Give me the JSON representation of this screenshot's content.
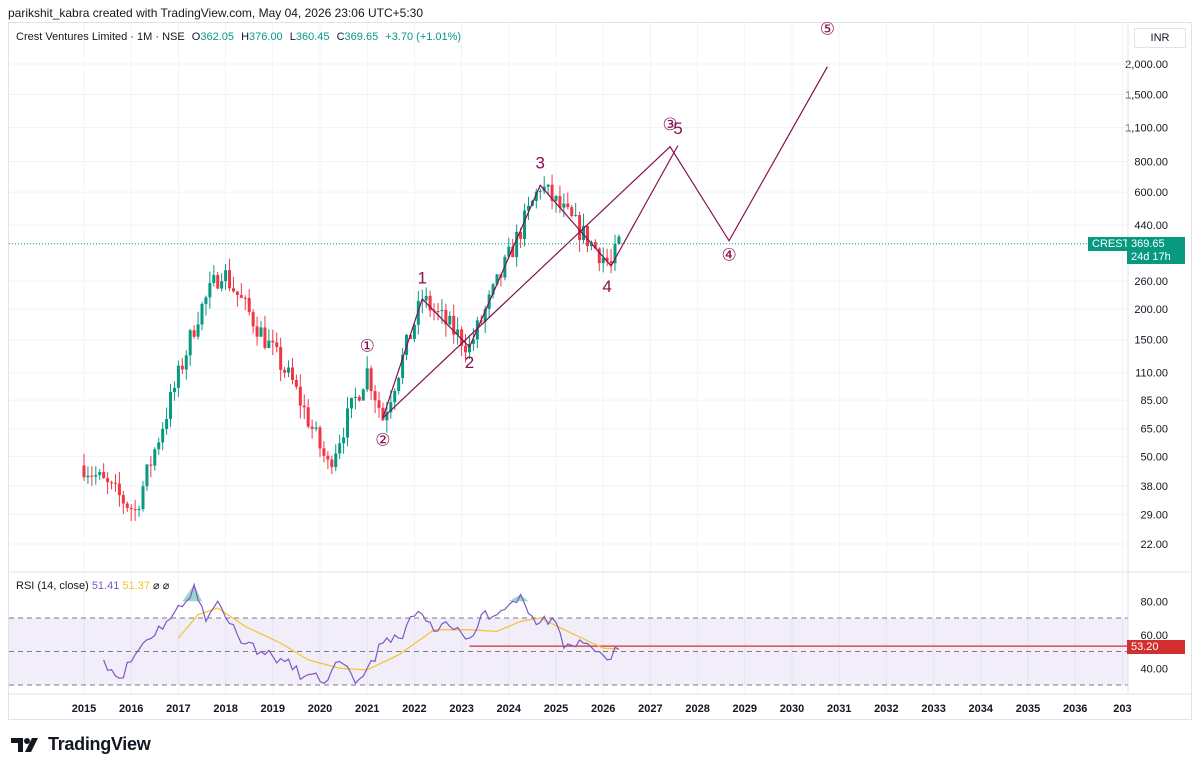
{
  "header": {
    "text": "parikshit_kabra created with TradingView.com, May 04, 2026 23:06 UTC+5:30"
  },
  "legend": {
    "symbol": "Crest Ventures Limited · 1M · NSE",
    "open_label": "O",
    "open": "362.05",
    "high_label": "H",
    "high": "376.00",
    "low_label": "L",
    "low": "360.45",
    "close_label": "C",
    "close": "369.65",
    "change": "+3.70 (+1.01%)"
  },
  "currency": "INR",
  "price_tags": {
    "symbol": "CREST",
    "last": "369.65",
    "timer": "24d 17h",
    "rsi_level": "53.20"
  },
  "rsi_legend": {
    "title": "RSI (14, close)",
    "rsi": "51.41",
    "ma": "51.37",
    "na1": "⌀",
    "na2": "⌀"
  },
  "footer": {
    "brand": "TradingView"
  },
  "colors": {
    "up": "#089981",
    "down": "#f23645",
    "wave": "#880e4f",
    "rsi": "#7e57c2",
    "rsi_ma": "#f5c12e",
    "level": "#d32f2f"
  },
  "chart_data": [
    {
      "type": "candlestick",
      "title": "Crest Ventures Limited · 1M · NSE",
      "scale": "log",
      "y_ticks": [
        22,
        29,
        38,
        50,
        65,
        85,
        110,
        150,
        200,
        260,
        440,
        600,
        800,
        1100,
        1500,
        2000
      ],
      "y_tick_labels": [
        "22.00",
        "29.00",
        "38.00",
        "50.00",
        "65.00",
        "85.00",
        "110.00",
        "150.00",
        "200.00",
        "260.00",
        "440.00",
        "600.00",
        "800.00",
        "1,100.00",
        "1,500.00",
        "2,000.00"
      ],
      "x_ticks": [
        "2015",
        "2016",
        "2017",
        "2018",
        "2019",
        "2020",
        "2021",
        "2022",
        "2023",
        "2024",
        "2025",
        "2026",
        "2027",
        "2028",
        "2029",
        "2030",
        "2031",
        "2032",
        "2033",
        "2034",
        "2035",
        "2036",
        "203"
      ],
      "key_closes": [
        {
          "date": "2015-01",
          "price": 46
        },
        {
          "date": "2016-02",
          "price": 30
        },
        {
          "date": "2017-06",
          "price": 190
        },
        {
          "date": "2017-12",
          "price": 290
        },
        {
          "date": "2019-06",
          "price": 100
        },
        {
          "date": "2020-03",
          "price": 46
        },
        {
          "date": "2021-01",
          "price": 112
        },
        {
          "date": "2021-05",
          "price": 72
        },
        {
          "date": "2022-03",
          "price": 220
        },
        {
          "date": "2023-03",
          "price": 140
        },
        {
          "date": "2024-09",
          "price": 640
        },
        {
          "date": "2026-03",
          "price": 300
        },
        {
          "date": "2026-05",
          "price": 369.65
        }
      ],
      "last_price": 369.65,
      "wave_labels": [
        {
          "label": "①",
          "date": "2021-01",
          "price": 140
        },
        {
          "label": "②",
          "date": "2021-05",
          "price": 58
        },
        {
          "label": "1",
          "date": "2022-03",
          "price": 265
        },
        {
          "label": "2",
          "date": "2023-03",
          "price": 120
        },
        {
          "label": "3",
          "date": "2024-09",
          "price": 780
        },
        {
          "label": "4",
          "date": "2026-02",
          "price": 245
        },
        {
          "label": "③",
          "date": "2027-06",
          "price": 1120
        },
        {
          "label": "5",
          "date": "2027-08",
          "price": 1080
        },
        {
          "label": "④",
          "date": "2028-09",
          "price": 330
        },
        {
          "label": "⑤",
          "date": "2030-10",
          "price": 2750
        }
      ],
      "wave_lines": [
        [
          {
            "date": "2021-05",
            "price": 72
          },
          {
            "date": "2022-03",
            "price": 220
          },
          {
            "date": "2023-03",
            "price": 140
          },
          {
            "date": "2024-09",
            "price": 640
          },
          {
            "date": "2026-03",
            "price": 300
          },
          {
            "date": "2027-08",
            "price": 930
          }
        ],
        [
          {
            "date": "2021-05",
            "price": 72
          },
          {
            "date": "2027-06",
            "price": 920
          },
          {
            "date": "2028-09",
            "price": 380
          },
          {
            "date": "2030-10",
            "price": 1950
          }
        ]
      ]
    },
    {
      "type": "line",
      "title": "RSI (14, close)",
      "y_ticks": [
        40,
        60,
        80
      ],
      "y_tick_labels": [
        "40.00",
        "60.00",
        "80.00"
      ],
      "bands": [
        30,
        50,
        70
      ],
      "level": 53.2,
      "series": [
        {
          "name": "RSI",
          "points": [
            {
              "date": "2015-06",
              "value": 45
            },
            {
              "date": "2015-10",
              "value": 34
            },
            {
              "date": "2016-04",
              "value": 55
            },
            {
              "date": "2016-10",
              "value": 68
            },
            {
              "date": "2017-03",
              "value": 80
            },
            {
              "date": "2017-05",
              "value": 90
            },
            {
              "date": "2017-08",
              "value": 68
            },
            {
              "date": "2017-11",
              "value": 80
            },
            {
              "date": "2018-04",
              "value": 60
            },
            {
              "date": "2018-10",
              "value": 50
            },
            {
              "date": "2019-04",
              "value": 44
            },
            {
              "date": "2019-09",
              "value": 35
            },
            {
              "date": "2020-03",
              "value": 33
            },
            {
              "date": "2020-06",
              "value": 44
            },
            {
              "date": "2020-10",
              "value": 31
            },
            {
              "date": "2021-01",
              "value": 40
            },
            {
              "date": "2021-05",
              "value": 55
            },
            {
              "date": "2021-09",
              "value": 58
            },
            {
              "date": "2022-02",
              "value": 74
            },
            {
              "date": "2022-06",
              "value": 62
            },
            {
              "date": "2022-10",
              "value": 65
            },
            {
              "date": "2023-03",
              "value": 58
            },
            {
              "date": "2023-06",
              "value": 72
            },
            {
              "date": "2023-10",
              "value": 72
            },
            {
              "date": "2024-02",
              "value": 80
            },
            {
              "date": "2024-04",
              "value": 84
            },
            {
              "date": "2024-08",
              "value": 66
            },
            {
              "date": "2024-12",
              "value": 70
            },
            {
              "date": "2025-03",
              "value": 52
            },
            {
              "date": "2025-08",
              "value": 55
            },
            {
              "date": "2025-12",
              "value": 50
            },
            {
              "date": "2026-02",
              "value": 45
            },
            {
              "date": "2026-05",
              "value": 51.41
            }
          ]
        },
        {
          "name": "RSI-based MA",
          "points": [
            {
              "date": "2017-01",
              "value": 58
            },
            {
              "date": "2017-06",
              "value": 72
            },
            {
              "date": "2017-11",
              "value": 76
            },
            {
              "date": "2018-06",
              "value": 65
            },
            {
              "date": "2019-03",
              "value": 55
            },
            {
              "date": "2019-10",
              "value": 45
            },
            {
              "date": "2020-06",
              "value": 40
            },
            {
              "date": "2021-01",
              "value": 39
            },
            {
              "date": "2021-09",
              "value": 48
            },
            {
              "date": "2022-06",
              "value": 63
            },
            {
              "date": "2023-03",
              "value": 63
            },
            {
              "date": "2023-10",
              "value": 62
            },
            {
              "date": "2024-04",
              "value": 68
            },
            {
              "date": "2024-09",
              "value": 70
            },
            {
              "date": "2025-04",
              "value": 62
            },
            {
              "date": "2026-01",
              "value": 52
            },
            {
              "date": "2026-05",
              "value": 51.37
            }
          ]
        }
      ]
    }
  ]
}
